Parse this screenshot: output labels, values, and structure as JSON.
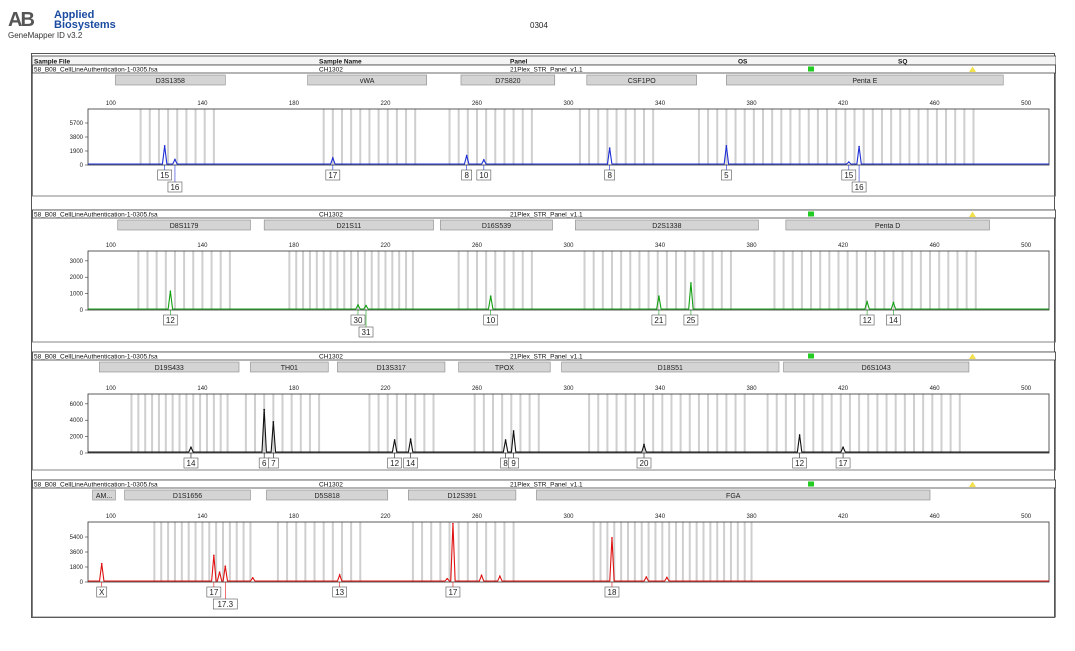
{
  "header": {
    "logo_mark": "AB",
    "brand_line1": "Applied",
    "brand_line2": "Biosystems",
    "app_version": "GeneMapper ID v3.2",
    "doc_title": "0304"
  },
  "columns": [
    "Sample File",
    "Sample Name",
    "Panel",
    "OS",
    "SQ"
  ],
  "colors": {
    "blue": "#1f2fd6",
    "green": "#12a012",
    "black": "#111111",
    "red": "#e01010",
    "status_green": "#22cc22",
    "status_yellow": "#f2e14a",
    "marker_fill": "#d4d4d4",
    "bin_gray": "#cfcfcf"
  },
  "chart_data": [
    {
      "type": "line",
      "panel_index": 1,
      "color": "blue",
      "sample_file": "58_B08_CellLineAuthentication-1-0305.fsa",
      "sample_name": "CH1302",
      "panel": "21Plex_STR_Panel_v1.1",
      "markers": [
        {
          "name": "D3S1358",
          "range": [
            102,
            150
          ]
        },
        {
          "name": "vWA",
          "range": [
            186,
            238
          ]
        },
        {
          "name": "D7S820",
          "range": [
            253,
            294
          ]
        },
        {
          "name": "CSF1PO",
          "range": [
            308,
            356
          ]
        },
        {
          "name": "Penta E",
          "range": [
            369,
            490
          ]
        }
      ],
      "x_ticks": [
        100,
        140,
        180,
        220,
        260,
        300,
        340,
        380,
        420,
        460,
        500
      ],
      "xlim": [
        90,
        510
      ],
      "y_ticks": [
        0,
        1900,
        3800,
        5700
      ],
      "ylim": [
        0,
        7600
      ],
      "peaks": [
        [
          123.5,
          2600
        ],
        [
          128,
          750
        ],
        [
          197,
          950
        ],
        [
          255.5,
          1300
        ],
        [
          263,
          700
        ],
        [
          318,
          2300
        ],
        [
          369,
          2600
        ],
        [
          422.5,
          400
        ],
        [
          427,
          2500
        ]
      ],
      "bins": [
        {
          "from": 113,
          "to": 146,
          "step": 4
        },
        {
          "from": 193,
          "to": 234,
          "step": 4
        },
        {
          "from": 248,
          "to": 287,
          "step": 4
        },
        {
          "from": 305,
          "to": 340,
          "step": 4
        },
        {
          "from": 357,
          "to": 479,
          "step": 4
        }
      ],
      "allele_calls": [
        {
          "label": "15",
          "x": 123.5,
          "row": 0
        },
        {
          "label": "16",
          "x": 128,
          "row": 1
        },
        {
          "label": "17",
          "x": 197,
          "row": 0
        },
        {
          "label": "8",
          "x": 255.5,
          "row": 0
        },
        {
          "label": "10",
          "x": 263,
          "row": 0
        },
        {
          "label": "8",
          "x": 318,
          "row": 0
        },
        {
          "label": "5",
          "x": 369,
          "row": 0
        },
        {
          "label": "15",
          "x": 422.5,
          "row": 0
        },
        {
          "label": "16",
          "x": 427,
          "row": 1
        }
      ]
    },
    {
      "type": "line",
      "panel_index": 2,
      "color": "green",
      "sample_file": "58_B08_CellLineAuthentication-1-0305.fsa",
      "sample_name": "CH1302",
      "panel": "21Plex_STR_Panel_v1.1",
      "markers": [
        {
          "name": "D8S1179",
          "range": [
            103,
            161
          ]
        },
        {
          "name": "D21S11",
          "range": [
            167,
            241
          ]
        },
        {
          "name": "D16S539",
          "range": [
            244,
            293
          ]
        },
        {
          "name": "D2S1338",
          "range": [
            303,
            383
          ]
        },
        {
          "name": "Penta D",
          "range": [
            395,
            484
          ]
        }
      ],
      "x_ticks": [
        100,
        140,
        180,
        220,
        260,
        300,
        340,
        380,
        420,
        460,
        500
      ],
      "xlim": [
        90,
        510
      ],
      "y_ticks": [
        0,
        1000,
        2000,
        3000
      ],
      "ylim": [
        0,
        3600
      ],
      "peaks": [
        [
          126,
          1150
        ],
        [
          208,
          300
        ],
        [
          211.5,
          270
        ],
        [
          266,
          850
        ],
        [
          339.5,
          850
        ],
        [
          353.5,
          1650
        ],
        [
          430.5,
          500
        ],
        [
          442,
          450
        ]
      ],
      "bins": [
        {
          "from": 112,
          "to": 153,
          "step": 4
        },
        {
          "from": 178,
          "to": 234,
          "step": 3
        },
        {
          "from": 252,
          "to": 285,
          "step": 4
        },
        {
          "from": 307,
          "to": 371,
          "step": 4
        },
        {
          "from": 390,
          "to": 478,
          "step": 4
        }
      ],
      "allele_calls": [
        {
          "label": "12",
          "x": 126,
          "row": 0
        },
        {
          "label": "30",
          "x": 208,
          "row": 0
        },
        {
          "label": "31",
          "x": 211.5,
          "row": 1
        },
        {
          "label": "10",
          "x": 266,
          "row": 0
        },
        {
          "label": "21",
          "x": 339.5,
          "row": 0
        },
        {
          "label": "25",
          "x": 353.5,
          "row": 0
        },
        {
          "label": "12",
          "x": 430.5,
          "row": 0
        },
        {
          "label": "14",
          "x": 442,
          "row": 0
        }
      ]
    },
    {
      "type": "line",
      "panel_index": 3,
      "color": "black",
      "sample_file": "58_B08_CellLineAuthentication-1-0305.fsa",
      "sample_name": "CH1302",
      "panel": "21Plex_STR_Panel_v1.1",
      "markers": [
        {
          "name": "D19S433",
          "range": [
            95,
            156
          ]
        },
        {
          "name": "TH01",
          "range": [
            161,
            195
          ]
        },
        {
          "name": "D13S317",
          "range": [
            199,
            246
          ]
        },
        {
          "name": "TPOX",
          "range": [
            252,
            292
          ]
        },
        {
          "name": "D18S51",
          "range": [
            297,
            392
          ]
        },
        {
          "name": "D6S1043",
          "range": [
            394,
            475
          ]
        }
      ],
      "x_ticks": [
        100,
        140,
        180,
        220,
        260,
        300,
        340,
        380,
        420,
        460,
        500
      ],
      "xlim": [
        90,
        510
      ],
      "y_ticks": [
        0,
        2000,
        4000,
        6000
      ],
      "ylim": [
        0,
        7200
      ],
      "peaks": [
        [
          135,
          700
        ],
        [
          167,
          5300
        ],
        [
          171,
          3800
        ],
        [
          224,
          1600
        ],
        [
          231,
          1700
        ],
        [
          272.5,
          1600
        ],
        [
          276,
          2700
        ],
        [
          333,
          1000
        ],
        [
          401,
          2200
        ],
        [
          420,
          700
        ]
      ],
      "bins": [
        {
          "from": 109,
          "to": 153,
          "step": 3
        },
        {
          "from": 159,
          "to": 194,
          "step": 4
        },
        {
          "from": 213,
          "to": 241,
          "step": 4
        },
        {
          "from": 259,
          "to": 290,
          "step": 4
        },
        {
          "from": 309,
          "to": 379,
          "step": 4
        },
        {
          "from": 387,
          "to": 472,
          "step": 4
        }
      ],
      "allele_calls": [
        {
          "label": "14",
          "x": 135,
          "row": 0
        },
        {
          "label": "6",
          "x": 167,
          "row": 0
        },
        {
          "label": "7",
          "x": 171,
          "row": 0
        },
        {
          "label": "12",
          "x": 224,
          "row": 0
        },
        {
          "label": "14",
          "x": 231,
          "row": 0
        },
        {
          "label": "8",
          "x": 272.5,
          "row": 0
        },
        {
          "label": "9",
          "x": 276,
          "row": 0
        },
        {
          "label": "20",
          "x": 333,
          "row": 0
        },
        {
          "label": "12",
          "x": 401,
          "row": 0
        },
        {
          "label": "17",
          "x": 420,
          "row": 0
        }
      ]
    },
    {
      "type": "line",
      "panel_index": 4,
      "color": "red",
      "sample_file": "58_B08_CellLineAuthentication-1-0305.fsa",
      "sample_name": "CH1302",
      "panel": "21Plex_STR_Panel_v1.1",
      "markers": [
        {
          "name": "AM...",
          "range": [
            92,
            102
          ]
        },
        {
          "name": "D1S1656",
          "range": [
            106,
            161
          ]
        },
        {
          "name": "D5S818",
          "range": [
            168,
            221
          ]
        },
        {
          "name": "D12S391",
          "range": [
            230,
            277
          ]
        },
        {
          "name": "FGA",
          "range": [
            286,
            458
          ]
        }
      ],
      "x_ticks": [
        100,
        140,
        180,
        220,
        260,
        300,
        340,
        380,
        420,
        460,
        500
      ],
      "xlim": [
        90,
        510
      ],
      "y_ticks": [
        0,
        1800,
        3600,
        5400
      ],
      "ylim": [
        0,
        7200
      ],
      "peaks": [
        [
          96,
          2200
        ],
        [
          145,
          3200
        ],
        [
          147.5,
          1200
        ],
        [
          150,
          1900
        ],
        [
          162,
          500
        ],
        [
          200,
          850
        ],
        [
          247,
          400
        ],
        [
          249.5,
          7000
        ],
        [
          262,
          800
        ],
        [
          270,
          700
        ],
        [
          319,
          5300
        ],
        [
          334,
          600
        ],
        [
          343,
          550
        ]
      ],
      "bins": [
        {
          "from": 119,
          "to": 163,
          "step": 3
        },
        {
          "from": 173,
          "to": 210,
          "step": 4
        },
        {
          "from": 232,
          "to": 278,
          "step": 4
        },
        {
          "from": 311,
          "to": 382,
          "step": 3
        }
      ],
      "allele_calls": [
        {
          "label": "X",
          "x": 96,
          "row": 0
        },
        {
          "label": "17",
          "x": 145,
          "row": 0
        },
        {
          "label": "17.3",
          "x": 150,
          "row": 1
        },
        {
          "label": "13",
          "x": 200,
          "row": 0
        },
        {
          "label": "17",
          "x": 249.5,
          "row": 0
        },
        {
          "label": "18",
          "x": 319,
          "row": 0
        }
      ]
    }
  ]
}
